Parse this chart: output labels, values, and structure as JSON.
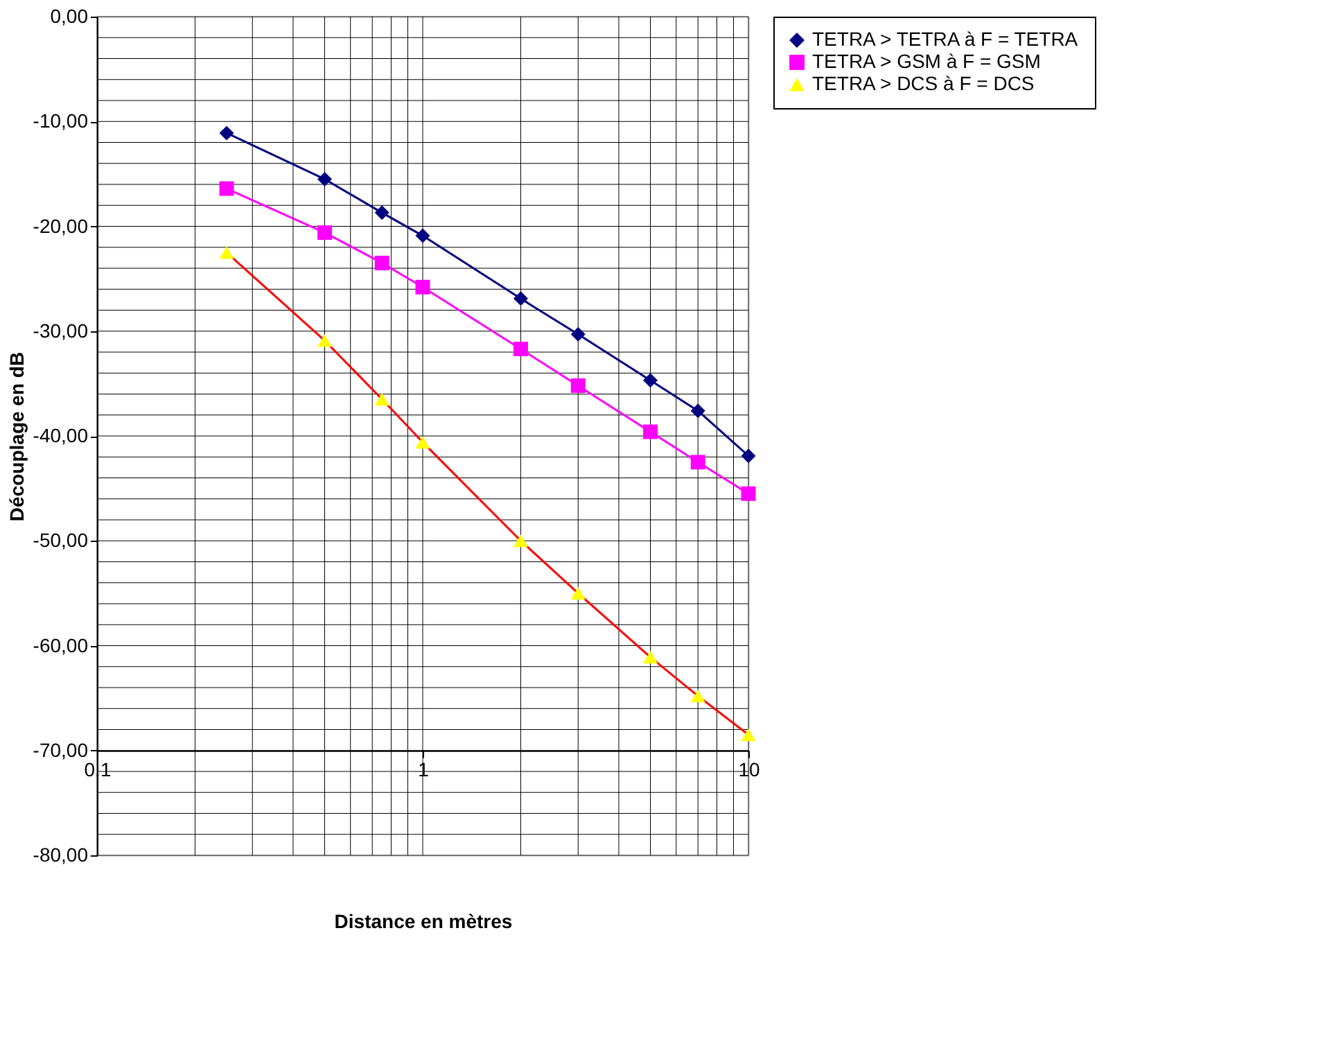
{
  "chart_data": {
    "type": "line",
    "xlabel": "Distance en mètres",
    "ylabel": "Découplage en dB",
    "log": "x",
    "x": [
      0.25,
      0.5,
      0.75,
      1,
      2,
      3,
      5,
      7,
      10
    ],
    "series": [
      {
        "name": "TETRA > TETRA à F = TETRA",
        "color": "#000080",
        "marker": "diamond",
        "values": [
          -11.1,
          -15.5,
          -18.7,
          -20.9,
          -26.9,
          -30.3,
          -34.7,
          -37.6,
          -41.9
        ]
      },
      {
        "name": "TETRA > GSM à F = GSM",
        "color": "#ff00ff",
        "marker": "square",
        "values": [
          -16.4,
          -20.6,
          -23.5,
          -25.8,
          -31.7,
          -35.2,
          -39.6,
          -42.5,
          -45.5
        ]
      },
      {
        "name": "TETRA > DCS à F = DCS",
        "color": "#ff0000",
        "colors": [
          "#ffff00",
          "#ffff00",
          "#ffff00",
          "#ffff00",
          "#ffff00",
          "#ffff00",
          "#ffff00",
          "#ffff00",
          "#ffff00"
        ],
        "marker": "triangle",
        "values": [
          -22.5,
          -30.9,
          -36.5,
          -40.6,
          -50.0,
          -55.0,
          -61.1,
          -64.8,
          -68.5
        ]
      }
    ],
    "xlim": [
      0.1,
      10
    ],
    "xticks": [
      {
        "value": 0.1,
        "label": "0,1"
      },
      1,
      10
    ],
    "ylim": [
      -80,
      0
    ],
    "yticks": [
      {
        "value": -80,
        "label": "-80,00"
      },
      {
        "value": -70,
        "label": "-70,00"
      },
      {
        "value": -60,
        "label": "-60,00"
      },
      {
        "value": -50,
        "label": "-50,00"
      },
      {
        "value": -40,
        "label": "-40,00"
      },
      {
        "value": -30,
        "label": "-30,00"
      },
      {
        "value": -20,
        "label": "-20,00"
      },
      {
        "value": -10,
        "label": "-10,00"
      },
      {
        "value": 0,
        "label": "0,00"
      }
    ],
    "grid": true,
    "legend": "right",
    "line_style": "solid"
  }
}
